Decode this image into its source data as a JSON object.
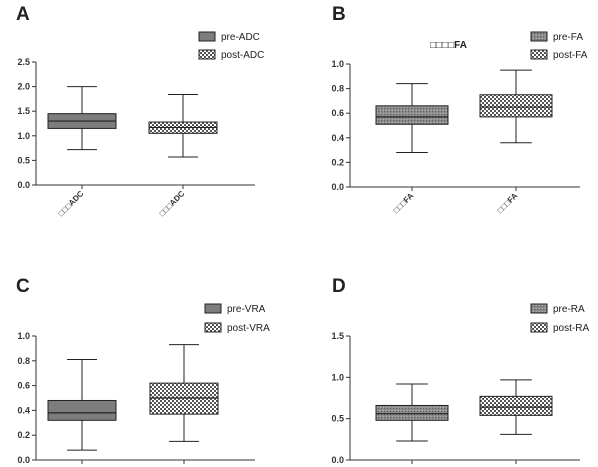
{
  "chart_data": [
    {
      "type": "box",
      "panel": "A",
      "title": "",
      "ylim": [
        0,
        2.5
      ],
      "yticks": [
        "0.0",
        "0.5",
        "1.0",
        "1.5",
        "2.0",
        "2.5"
      ],
      "categories": [
        "□□□ADC",
        "□□□ADC"
      ],
      "series": [
        {
          "name": "pre-ADC",
          "pattern": "solid-gray",
          "min": 0.72,
          "q1": 1.15,
          "median": 1.3,
          "q3": 1.45,
          "max": 2.0
        },
        {
          "name": "post-ADC",
          "pattern": "checker",
          "min": 0.57,
          "q1": 1.05,
          "median": 1.17,
          "q3": 1.28,
          "max": 1.84
        }
      ]
    },
    {
      "type": "box",
      "panel": "B",
      "title": "□□□□FA",
      "ylim": [
        0,
        1.0
      ],
      "yticks": [
        "0.0",
        "0.2",
        "0.4",
        "0.6",
        "0.8",
        "1.0"
      ],
      "categories": [
        "□□□FA",
        "□□□FA"
      ],
      "series": [
        {
          "name": "pre-FA",
          "pattern": "hatch-gray",
          "min": 0.28,
          "q1": 0.51,
          "median": 0.57,
          "q3": 0.66,
          "max": 0.84
        },
        {
          "name": "post-FA",
          "pattern": "checker",
          "min": 0.36,
          "q1": 0.57,
          "median": 0.65,
          "q3": 0.75,
          "max": 0.95
        }
      ]
    },
    {
      "type": "box",
      "panel": "C",
      "title": "",
      "ylim": [
        0,
        1.0
      ],
      "yticks": [
        "0.0",
        "0.2",
        "0.4",
        "0.6",
        "0.8",
        "1.0"
      ],
      "categories": [],
      "series": [
        {
          "name": "pre-VRA",
          "pattern": "solid-gray",
          "min": 0.08,
          "q1": 0.32,
          "median": 0.38,
          "q3": 0.48,
          "max": 0.81
        },
        {
          "name": "post-VRA",
          "pattern": "checker",
          "min": 0.15,
          "q1": 0.37,
          "median": 0.5,
          "q3": 0.62,
          "max": 0.93
        }
      ]
    },
    {
      "type": "box",
      "panel": "D",
      "title": "",
      "ylim": [
        0,
        1.5
      ],
      "yticks": [
        "0.0",
        "0.5",
        "1.0",
        "1.5"
      ],
      "categories": [],
      "series": [
        {
          "name": "pre-RA",
          "pattern": "hatch-gray",
          "min": 0.23,
          "q1": 0.48,
          "median": 0.56,
          "q3": 0.66,
          "max": 0.92
        },
        {
          "name": "post-RA",
          "pattern": "checker",
          "min": 0.31,
          "q1": 0.54,
          "median": 0.64,
          "q3": 0.77,
          "max": 0.97
        }
      ]
    }
  ]
}
